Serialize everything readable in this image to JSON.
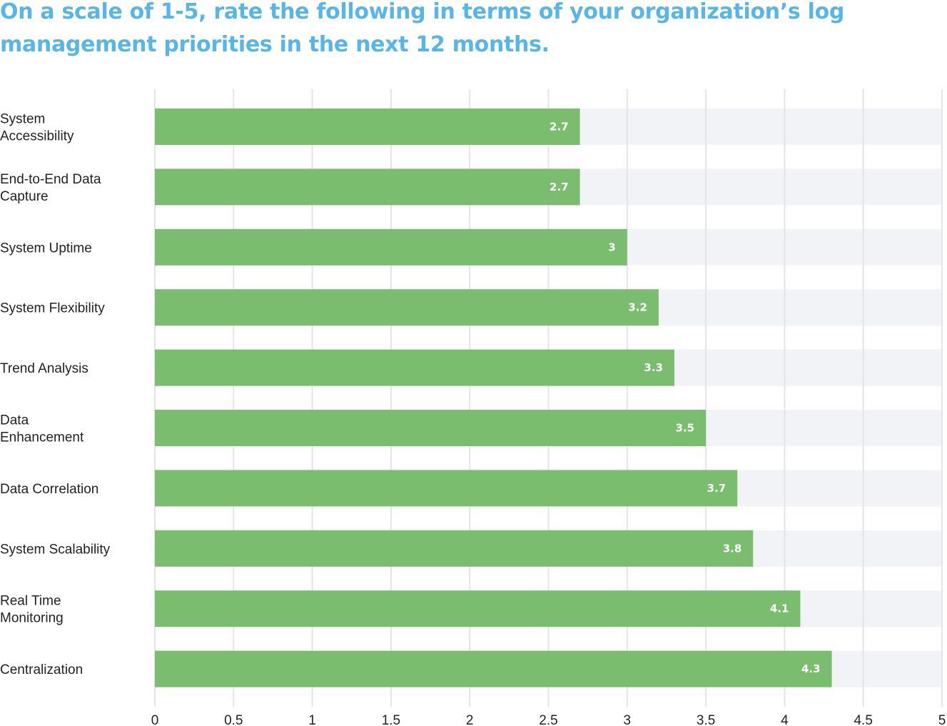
{
  "colors": {
    "title": "#58b6e7",
    "bar": "#7bbd6f",
    "track": "#f2f3f7",
    "grid": "#e4e4e6",
    "value_text": "#ffffff",
    "label_text": "#222222"
  },
  "chart_data": {
    "type": "bar",
    "orientation": "horizontal",
    "title": "On a scale of 1-5, rate the following in terms of your organization’s log management priorities in the next 12 months.",
    "categories": [
      "System Accessibility",
      "End-to-End Data Capture",
      "System Uptime",
      "System Flexibility",
      "Trend Analysis",
      "Data Enhancement",
      "Data Correlation",
      "System Scalability",
      "Real Time Monitoring",
      "Centralization"
    ],
    "category_lines": [
      [
        "System",
        "Accessibility"
      ],
      [
        "End-to-End Data",
        "Capture"
      ],
      [
        "System Uptime"
      ],
      [
        "System Flexibility"
      ],
      [
        "Trend Analysis"
      ],
      [
        "Data",
        "Enhancement"
      ],
      [
        "Data Correlation"
      ],
      [
        "System Scalability"
      ],
      [
        "Real Time",
        "Monitoring"
      ],
      [
        "Centralization"
      ]
    ],
    "values": [
      2.7,
      2.7,
      3,
      3.2,
      3.3,
      3.5,
      3.7,
      3.8,
      4.1,
      4.3
    ],
    "value_labels": [
      "2.7",
      "2.7",
      "3",
      "3.2",
      "3.3",
      "3.5",
      "3.7",
      "3.8",
      "4.1",
      "4.3"
    ],
    "xlim": [
      0,
      5
    ],
    "xticks": [
      0,
      0.5,
      1,
      1.5,
      2,
      2.5,
      3,
      3.5,
      4,
      4.5,
      5
    ],
    "xtick_labels": [
      "0",
      "0.5",
      "1",
      "1.5",
      "2",
      "2.5",
      "3",
      "3.5",
      "4",
      "4.5",
      "5"
    ],
    "grid": true,
    "legend": "none"
  }
}
